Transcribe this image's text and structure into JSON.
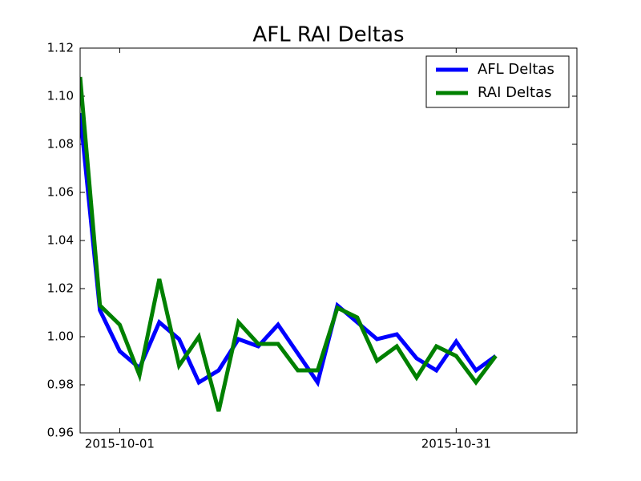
{
  "chart_data": {
    "type": "line",
    "title": "AFL RAI Deltas",
    "x": [
      0,
      1,
      2,
      3,
      4,
      5,
      6,
      7,
      8,
      9,
      10,
      11,
      12,
      13,
      14,
      15,
      16,
      17,
      18,
      19,
      20,
      21
    ],
    "xlim": [
      0,
      25.1
    ],
    "xticks": [
      {
        "value": 2,
        "label": "2015-10-01"
      },
      {
        "value": 19,
        "label": "2015-10-31"
      }
    ],
    "ylim": [
      0.96,
      1.12
    ],
    "yticks": [
      {
        "value": 0.96,
        "label": "0.96"
      },
      {
        "value": 0.98,
        "label": "0.98"
      },
      {
        "value": 1.0,
        "label": "1.00"
      },
      {
        "value": 1.02,
        "label": "1.02"
      },
      {
        "value": 1.04,
        "label": "1.04"
      },
      {
        "value": 1.06,
        "label": "1.06"
      },
      {
        "value": 1.08,
        "label": "1.08"
      },
      {
        "value": 1.1,
        "label": "1.10"
      },
      {
        "value": 1.12,
        "label": "1.12"
      }
    ],
    "legend": "upper right",
    "series": [
      {
        "name": "AFL Deltas",
        "color": "#0000ff",
        "values": [
          1.093,
          1.011,
          0.994,
          0.987,
          1.006,
          0.999,
          0.981,
          0.986,
          0.999,
          0.996,
          1.005,
          0.993,
          0.981,
          1.013,
          1.006,
          0.999,
          1.001,
          0.991,
          0.986,
          0.998,
          0.986,
          0.992
        ]
      },
      {
        "name": "RAI Deltas",
        "color": "#008000",
        "values": [
          1.108,
          1.013,
          1.005,
          0.984,
          1.024,
          0.988,
          1.0,
          0.969,
          1.006,
          0.997,
          0.997,
          0.986,
          0.986,
          1.012,
          1.008,
          0.99,
          0.996,
          0.983,
          0.996,
          0.992,
          0.981,
          0.992
        ]
      }
    ]
  }
}
